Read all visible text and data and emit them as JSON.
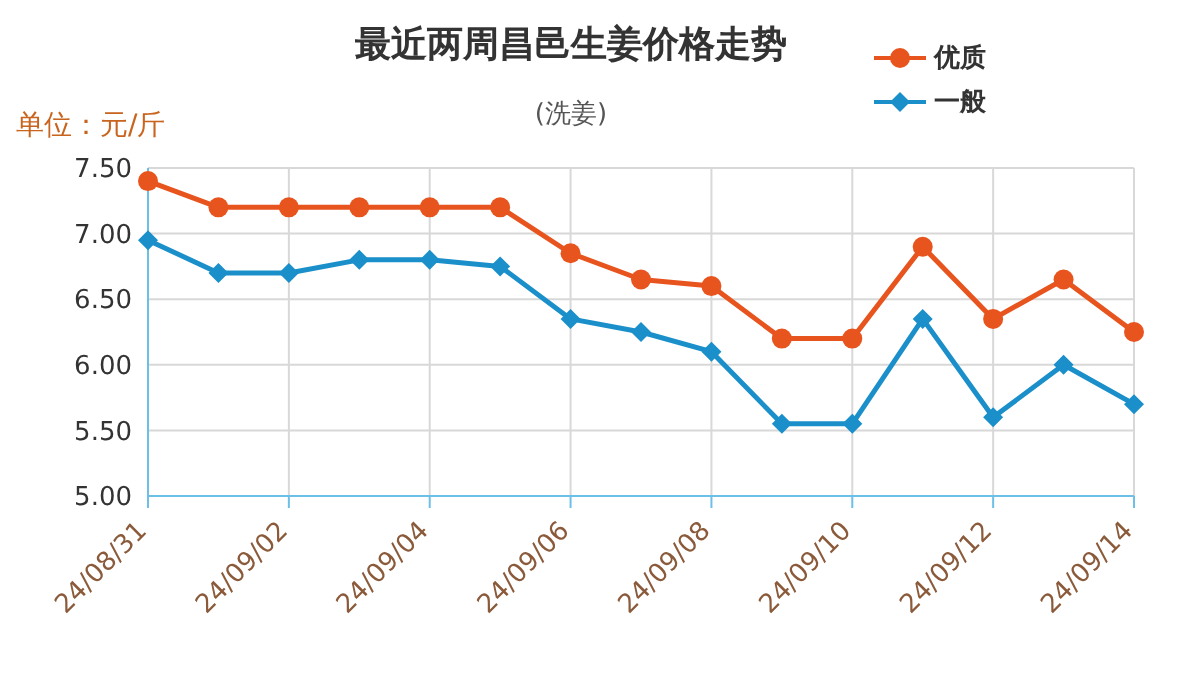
{
  "chart_data": {
    "type": "line",
    "title": "最近两周昌邑生姜价格走势",
    "subtitle": "(洗姜)",
    "ylabel": "单位：元/斤",
    "categories": [
      "24/08/31",
      null,
      "24/09/02",
      null,
      "24/09/04",
      null,
      "24/09/06",
      null,
      "24/09/08",
      null,
      "24/09/10",
      null,
      "24/09/12",
      null,
      "24/09/14"
    ],
    "series": [
      {
        "name": "优质",
        "color": "#e8541e",
        "marker": "circle",
        "values": [
          7.4,
          7.2,
          7.2,
          7.2,
          7.2,
          7.2,
          6.85,
          6.65,
          6.6,
          6.2,
          6.2,
          6.9,
          6.35,
          6.65,
          6.25
        ]
      },
      {
        "name": "一般",
        "color": "#1a8fc9",
        "marker": "diamond",
        "values": [
          6.95,
          6.7,
          6.7,
          6.8,
          6.8,
          6.75,
          6.35,
          6.25,
          6.1,
          5.55,
          5.55,
          6.35,
          5.6,
          6.0,
          5.7
        ]
      }
    ],
    "ylim": [
      5,
      7.5
    ],
    "yticks": [
      {
        "value": 5,
        "label": "5.00"
      },
      {
        "value": 5.5,
        "label": "5.50"
      },
      {
        "value": 6,
        "label": "6.00"
      },
      {
        "value": 6.5,
        "label": "6.50"
      },
      {
        "value": 7,
        "label": "7.00"
      },
      {
        "value": 7.5,
        "label": "7.50"
      }
    ],
    "grid": true,
    "legend": "top right",
    "line_style": "solid"
  }
}
